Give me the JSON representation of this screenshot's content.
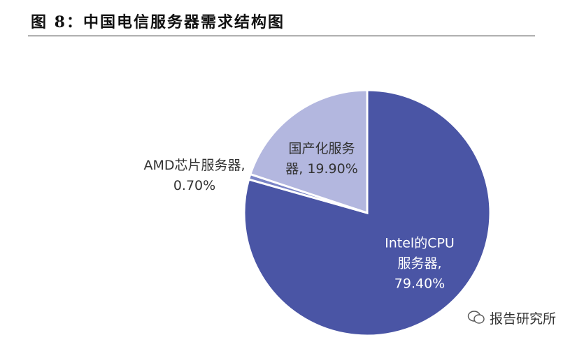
{
  "chart_data": {
    "type": "pie",
    "title": "图 8：中国电信服务器需求结构图",
    "values": [
      79.4,
      0.7,
      19.9
    ],
    "value_labels": [
      "Intel的CPU服务器, 79.40%",
      "AMD芯片服务器, 0.70%",
      "国产化服务器, 19.90%"
    ],
    "colors": [
      "#4a55a5",
      "#7a84c6",
      "#b3b7df"
    ],
    "watermark": "报告研究所"
  }
}
